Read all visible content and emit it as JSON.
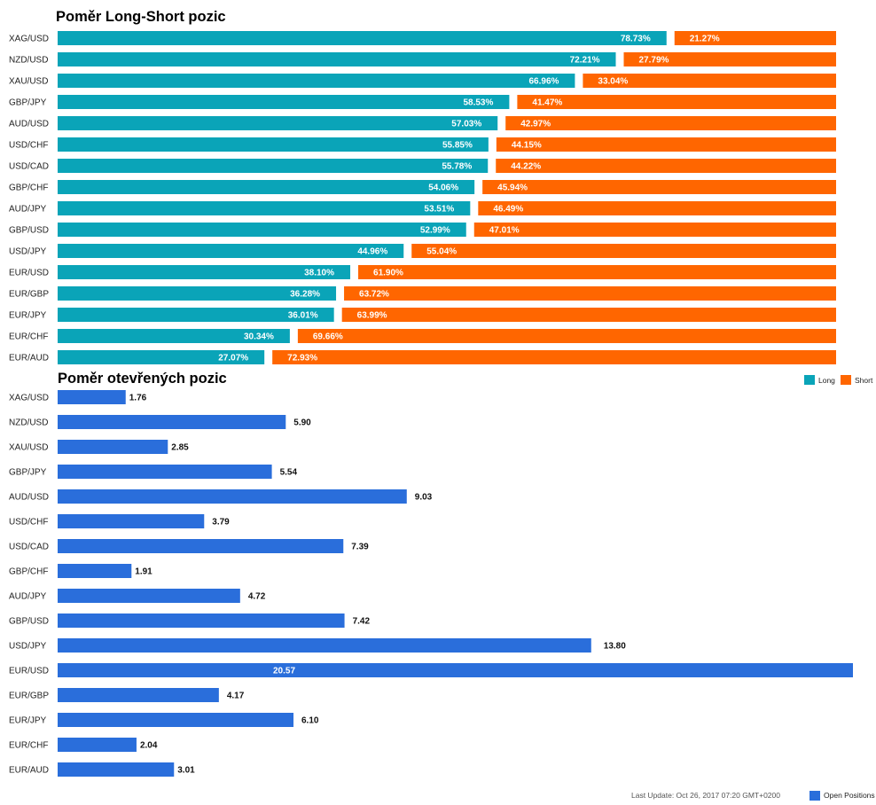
{
  "chart_data": [
    {
      "type": "bar",
      "stacked": true,
      "orientation": "horizontal",
      "title": "Poměr Long-Short pozic",
      "categories": [
        "XAG/USD",
        "NZD/USD",
        "XAU/USD",
        "GBP/JPY",
        "AUD/USD",
        "USD/CHF",
        "USD/CAD",
        "GBP/CHF",
        "AUD/JPY",
        "GBP/USD",
        "USD/JPY",
        "EUR/USD",
        "EUR/GBP",
        "EUR/JPY",
        "EUR/CHF",
        "EUR/AUD"
      ],
      "series": [
        {
          "name": "Long",
          "color": "#0AA4B8",
          "values": [
            78.73,
            72.21,
            66.96,
            58.53,
            57.03,
            55.85,
            55.78,
            54.06,
            53.51,
            52.99,
            44.96,
            38.1,
            36.28,
            36.01,
            30.34,
            27.07
          ],
          "labels": [
            "78.73%",
            "72.21%",
            "66.96%",
            "58.53%",
            "57.03%",
            "55.85%",
            "55.78%",
            "54.06%",
            "53.51%",
            "52.99%",
            "44.96%",
            "38.10%",
            "36.28%",
            "36.01%",
            "30.34%",
            "27.07%"
          ]
        },
        {
          "name": "Short",
          "color": "#FF6600",
          "values": [
            21.27,
            27.79,
            33.04,
            41.47,
            42.97,
            44.15,
            44.22,
            45.94,
            46.49,
            47.01,
            55.04,
            61.9,
            63.72,
            63.99,
            69.66,
            72.93
          ],
          "labels": [
            "21.27%",
            "27.79%",
            "33.04%",
            "41.47%",
            "42.97%",
            "44.15%",
            "44.22%",
            "45.94%",
            "46.49%",
            "47.01%",
            "55.04%",
            "61.90%",
            "63.72%",
            "63.99%",
            "69.66%",
            "72.93%"
          ]
        }
      ],
      "xlim": [
        0,
        100
      ],
      "legend": "right"
    },
    {
      "type": "bar",
      "orientation": "horizontal",
      "title": "Poměr otevřených pozic",
      "categories": [
        "XAG/USD",
        "NZD/USD",
        "XAU/USD",
        "GBP/JPY",
        "AUD/USD",
        "USD/CHF",
        "USD/CAD",
        "GBP/CHF",
        "AUD/JPY",
        "GBP/USD",
        "USD/JPY",
        "EUR/USD",
        "EUR/GBP",
        "EUR/JPY",
        "EUR/CHF",
        "EUR/AUD"
      ],
      "series": [
        {
          "name": "Open Positions",
          "color": "#2A6EDB",
          "values": [
            1.76,
            5.9,
            2.85,
            5.54,
            9.03,
            3.79,
            7.39,
            1.91,
            4.72,
            7.42,
            13.8,
            20.57,
            4.17,
            6.1,
            2.04,
            3.01
          ],
          "labels": [
            "1.76",
            "5.90",
            "2.85",
            "5.54",
            "9.03",
            "3.79",
            "7.39",
            "1.91",
            "4.72",
            "7.42",
            "13.80",
            "20.57",
            "4.17",
            "6.10",
            "2.04",
            "3.01"
          ]
        }
      ],
      "xlim": [
        0,
        20.57
      ],
      "legend": "bottom-right"
    }
  ],
  "footer": {
    "last_update": "Last Update: Oct 26, 2017 07:20 GMT+0200"
  }
}
